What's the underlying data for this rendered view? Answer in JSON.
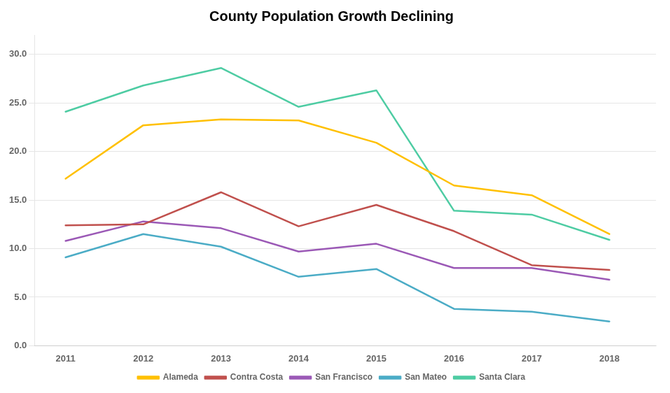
{
  "chart_data": {
    "type": "line",
    "title": "County Population Growth Declining",
    "x": [
      2011,
      2012,
      2013,
      2014,
      2015,
      2016,
      2017,
      2018
    ],
    "xlim": [
      2010.6,
      2018.6
    ],
    "xticks": [
      2011,
      2012,
      2013,
      2014,
      2015,
      2016,
      2017,
      2018
    ],
    "ylim": [
      0,
      32
    ],
    "yticks": [
      {
        "value": 0,
        "label": "0.0"
      },
      {
        "value": 5,
        "label": "5.0"
      },
      {
        "value": 10,
        "label": "10.0"
      },
      {
        "value": 15,
        "label": "15.0"
      },
      {
        "value": 20,
        "label": "20.0"
      },
      {
        "value": 25,
        "label": "25.0"
      },
      {
        "value": 30,
        "label": "30.0"
      }
    ],
    "grid": "y",
    "legend": "bottom",
    "series": [
      {
        "name": "Alameda",
        "color": "#FFC000",
        "values": [
          17.2,
          22.7,
          23.3,
          23.2,
          20.9,
          16.5,
          15.5,
          11.5
        ]
      },
      {
        "name": "Contra Costa",
        "color": "#C0504D",
        "values": [
          12.4,
          12.5,
          15.8,
          12.3,
          14.5,
          11.8,
          8.3,
          7.8
        ]
      },
      {
        "name": "San Francisco",
        "color": "#9B59B6",
        "values": [
          10.8,
          12.8,
          12.1,
          9.7,
          10.5,
          8.0,
          8.0,
          6.8
        ]
      },
      {
        "name": "San Mateo",
        "color": "#4BACC6",
        "values": [
          9.1,
          11.5,
          10.2,
          7.1,
          7.9,
          3.8,
          3.5,
          2.5
        ]
      },
      {
        "name": "Santa Clara",
        "color": "#4ECCA3",
        "values": [
          24.1,
          26.8,
          28.6,
          24.6,
          26.3,
          13.9,
          13.5,
          10.9
        ]
      }
    ]
  }
}
